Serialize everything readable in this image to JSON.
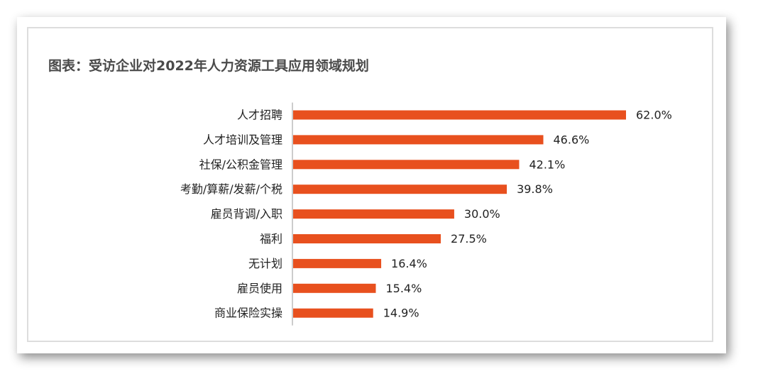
{
  "chart_data": {
    "type": "bar",
    "orientation": "horizontal",
    "title": "图表：受访企业对2022年人力资源工具应用领域规划",
    "categories": [
      "人才招聘",
      "人才培训及管理",
      "社保/公积金管理",
      "考勤/算薪/发薪/个税",
      "雇员背调/入职",
      "福利",
      "无计划",
      "雇员使用",
      "商业保险实操"
    ],
    "values": [
      62.0,
      46.6,
      42.1,
      39.8,
      30.0,
      27.5,
      16.4,
      15.4,
      14.9
    ],
    "value_labels": [
      "62.0%",
      "46.6%",
      "42.1%",
      "39.8%",
      "30.0%",
      "27.5%",
      "16.4%",
      "15.4%",
      "14.9%"
    ],
    "xlim": [
      0,
      62.0
    ],
    "grid": false,
    "bar_color": "#E8501E",
    "axis_color": "#bbbbbb"
  }
}
